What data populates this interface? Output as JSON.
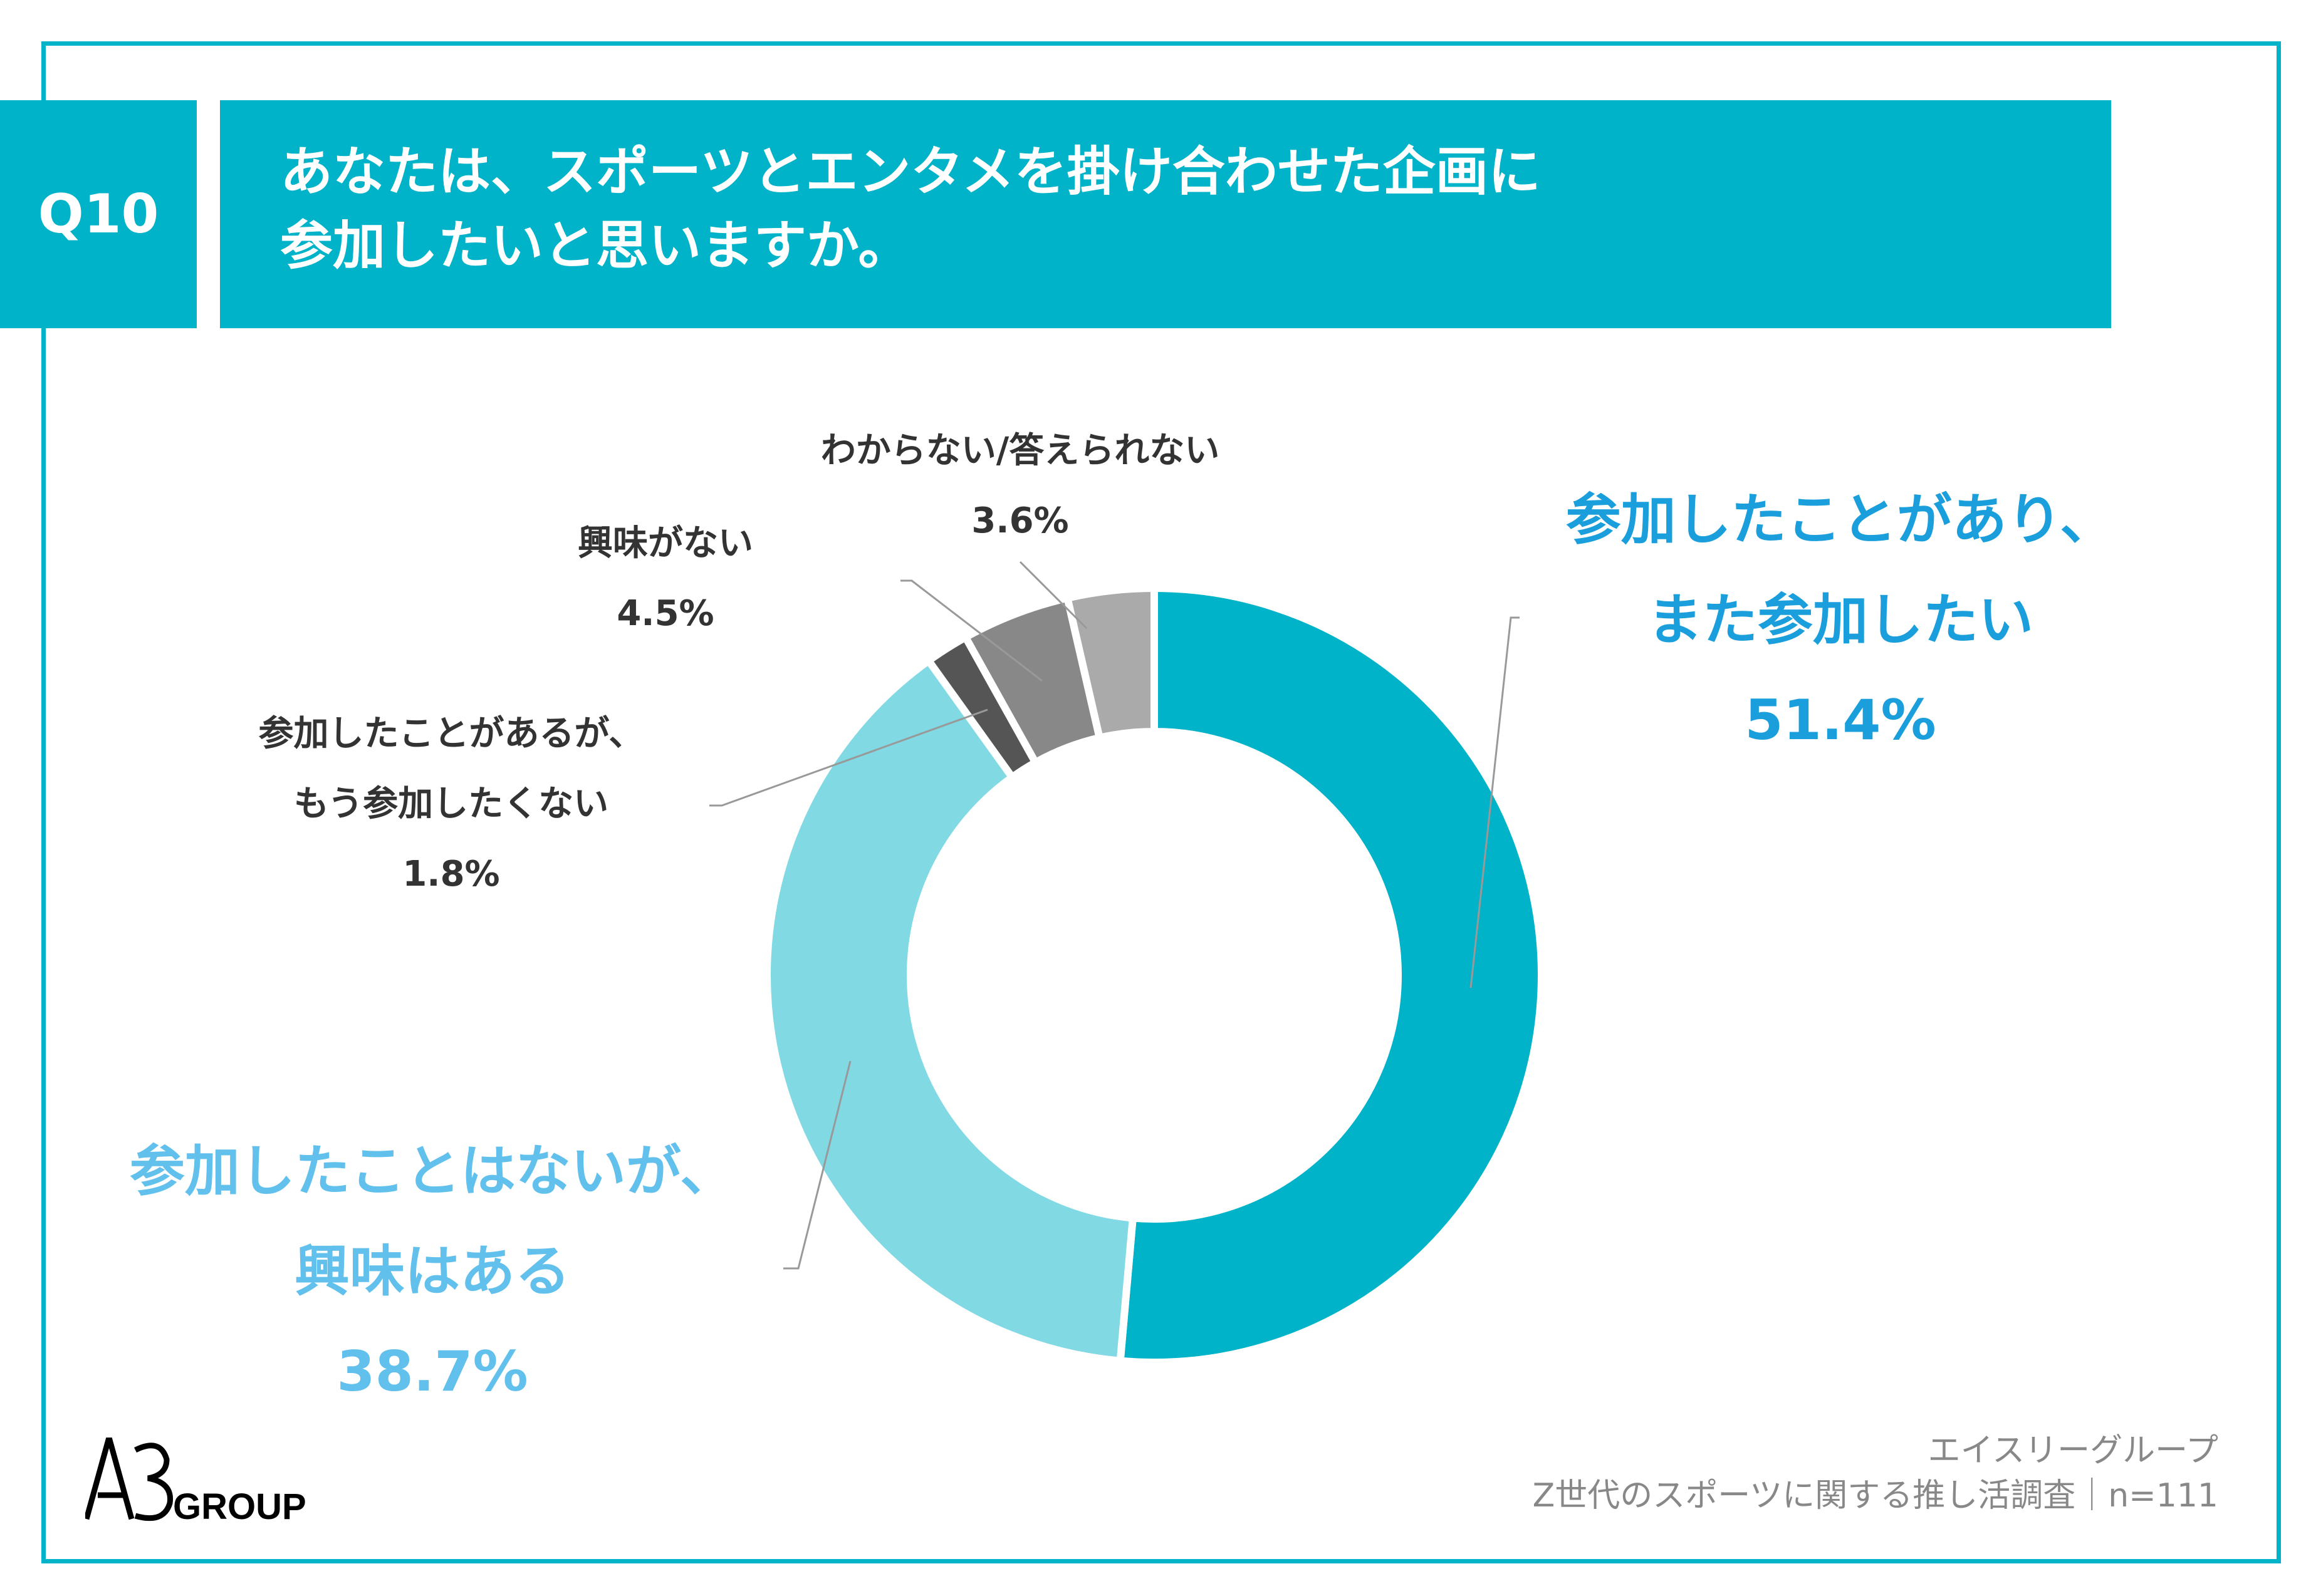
{
  "question": {
    "number": "Q10",
    "title_line1": "あなたは、スポーツとエンタメを掛け合わせた企画に",
    "title_line2": "参加したいと思いますか。"
  },
  "chart_data": {
    "type": "pie",
    "donut": true,
    "title": "あなたは、スポーツとエンタメを掛け合わせた企画に参加したいと思いますか。",
    "slices": [
      {
        "label_lines": [
          "参加したことがあり、",
          "また参加したい"
        ],
        "value": 51.4,
        "value_label": "51.4%",
        "color": "#00b3c8",
        "text_color": "#1a9fdc"
      },
      {
        "label_lines": [
          "参加したことはないが、",
          "興味はある"
        ],
        "value": 38.7,
        "value_label": "38.7%",
        "color": "#80d9e3",
        "text_color": "#62c0ec"
      },
      {
        "label_lines": [
          "参加したことがあるが、",
          "もう参加したくない"
        ],
        "value": 1.8,
        "value_label": "1.8%",
        "color": "#555555",
        "text_color": "#333333"
      },
      {
        "label_lines": [
          "興味がない"
        ],
        "value": 4.5,
        "value_label": "4.5%",
        "color": "#888888",
        "text_color": "#333333"
      },
      {
        "label_lines": [
          "わからない/答えられない"
        ],
        "value": 3.6,
        "value_label": "3.6%",
        "color": "#aaaaaa",
        "text_color": "#333333"
      }
    ]
  },
  "footer": {
    "company": "エイスリーグループ",
    "survey": "Z世代のスポーツに関する推し活調査｜n=111"
  },
  "logo": {
    "text": "A3GROUP"
  }
}
